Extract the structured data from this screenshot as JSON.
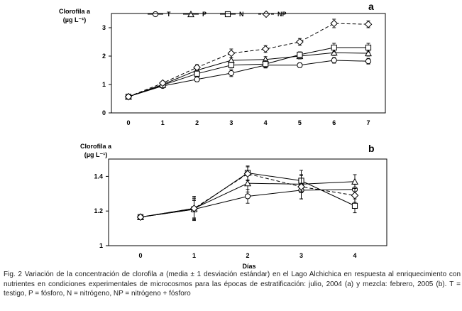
{
  "chart_data": [
    {
      "type": "line",
      "panel": "a",
      "ylabel_line1": "Clorofila a",
      "ylabel_line2": "(µg L⁻¹)",
      "x": [
        0,
        1,
        2,
        3,
        4,
        5,
        6,
        7
      ],
      "x_ticks": [
        "0",
        "1",
        "2",
        "3",
        "4",
        "5",
        "6",
        "7"
      ],
      "ylim": [
        0,
        3.5
      ],
      "y_ticks": [
        "0",
        "1",
        "2",
        "3"
      ],
      "y_tick_values": [
        0,
        1,
        2,
        3
      ],
      "legend_position": "top",
      "series": [
        {
          "name": "T",
          "marker": "circle",
          "dash": "solid",
          "values": [
            0.57,
            0.95,
            1.18,
            1.4,
            1.68,
            1.68,
            1.85,
            1.82
          ],
          "err": [
            0.05,
            0.05,
            0.08,
            0.12,
            0.1,
            0.08,
            0.1,
            0.1
          ]
        },
        {
          "name": "P",
          "marker": "triangle",
          "dash": "solid",
          "values": [
            0.57,
            1.0,
            1.5,
            1.85,
            1.88,
            2.0,
            2.12,
            2.1
          ],
          "err": [
            0.05,
            0.05,
            0.08,
            0.1,
            0.1,
            0.1,
            0.1,
            0.1
          ]
        },
        {
          "name": "N",
          "marker": "square",
          "dash": "solid",
          "values": [
            0.57,
            0.98,
            1.38,
            1.68,
            1.72,
            2.05,
            2.3,
            2.3
          ],
          "err": [
            0.05,
            0.05,
            0.08,
            0.1,
            0.12,
            0.1,
            0.15,
            0.15
          ]
        },
        {
          "name": "NP",
          "marker": "diamond",
          "dash": "dashed",
          "values": [
            0.57,
            1.05,
            1.6,
            2.1,
            2.25,
            2.5,
            3.15,
            3.12
          ],
          "err": [
            0.05,
            0.07,
            0.1,
            0.15,
            0.12,
            0.12,
            0.15,
            0.12
          ]
        }
      ]
    },
    {
      "type": "line",
      "panel": "b",
      "ylabel_line1": "Clorofila a",
      "ylabel_line2": "(µg L⁻¹)",
      "xlabel": "Días",
      "x": [
        0,
        1,
        2,
        3,
        4
      ],
      "x_ticks": [
        "0",
        "1",
        "2",
        "3",
        "4"
      ],
      "ylim": [
        1.0,
        1.5
      ],
      "y_ticks": [
        "1",
        "1.2",
        "1.4"
      ],
      "y_tick_values": [
        1.0,
        1.2,
        1.4
      ],
      "series": [
        {
          "name": "T",
          "marker": "circle",
          "dash": "solid",
          "values": [
            1.165,
            1.21,
            1.285,
            1.32,
            1.325
          ],
          "err": [
            0.005,
            0.05,
            0.04,
            0.05,
            0.03
          ]
        },
        {
          "name": "P",
          "marker": "triangle",
          "dash": "solid",
          "values": [
            1.165,
            1.215,
            1.36,
            1.355,
            1.37
          ],
          "err": [
            0.005,
            0.06,
            0.05,
            0.05,
            0.04
          ]
        },
        {
          "name": "N",
          "marker": "square",
          "dash": "solid",
          "values": [
            1.165,
            1.21,
            1.42,
            1.375,
            1.23
          ],
          "err": [
            0.005,
            0.06,
            0.04,
            0.06,
            0.04
          ]
        },
        {
          "name": "NP",
          "marker": "diamond",
          "dash": "dashed",
          "values": [
            1.165,
            1.215,
            1.415,
            1.34,
            1.29
          ],
          "err": [
            0.005,
            0.07,
            0.04,
            0.07,
            0.04
          ]
        }
      ]
    }
  ],
  "caption": {
    "lead": "Fig. 2 Variación de la concentración de clorofila ",
    "italic_a": "a",
    "rest": " (media ± 1 desviación estándar) en el Lago Alchichica en respuesta al enriquecimiento con nutrientes  en condiciones experimentales de microcosmos para las épocas de estratificación: julio, 2004 (a) y mezcla: febrero, 2005 (b). T = testigo, P = fósforo, N = nitrógeno, NP = nitrógeno + fósforo"
  }
}
